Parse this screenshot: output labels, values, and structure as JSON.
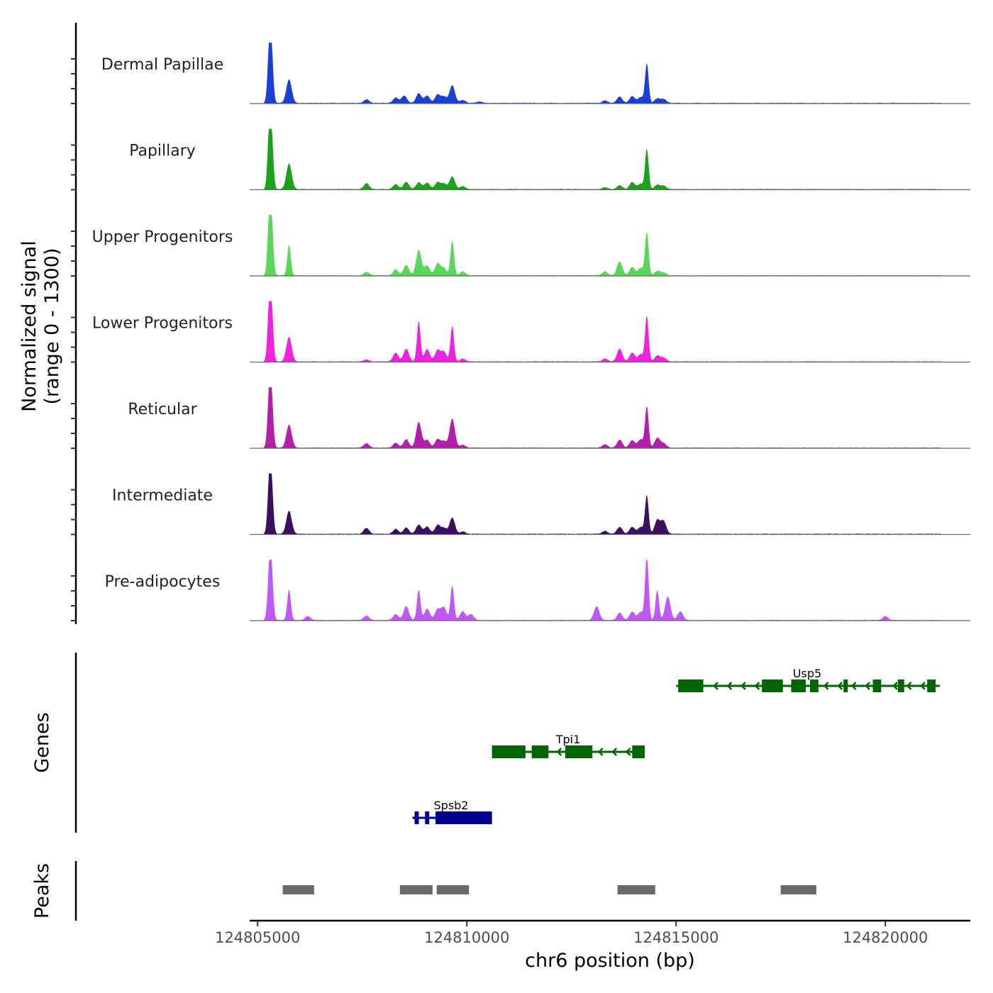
{
  "chart_data": {
    "type": "area",
    "title": "",
    "xlabel": "chr6 position (bp)",
    "ylabel_lines": [
      "Normalized signal",
      "(range 0 - 1300)"
    ],
    "y_range": [
      0,
      1300
    ],
    "x_range": [
      124804810,
      124822030
    ],
    "x_ticks": [
      124805000,
      124810000,
      124815000,
      124820000
    ],
    "x_tick_labels": [
      "124805000",
      "124810000",
      "124815000",
      "124820000"
    ],
    "tracks": [
      {
        "name": "Dermal Papillae",
        "color": "#1a3fd6",
        "peaks": [
          [
            124805100,
            124805600,
            0.0
          ],
          [
            124805150,
            0.55
          ],
          [
            124805280,
            1000
          ],
          [
            124805330,
            920
          ],
          [
            124805750,
            480
          ],
          [
            124807600,
            70
          ],
          [
            124808300,
            110
          ],
          [
            124808500,
            150
          ],
          [
            124808850,
            200
          ],
          [
            124809050,
            150
          ],
          [
            124809300,
            170
          ],
          [
            124809450,
            130
          ],
          [
            124809650,
            360
          ],
          [
            124809900,
            60
          ],
          [
            124810300,
            30
          ],
          [
            124813300,
            50
          ],
          [
            124813650,
            130
          ],
          [
            124813950,
            140
          ],
          [
            124814150,
            120
          ],
          [
            124814300,
            800
          ],
          [
            124814550,
            90
          ],
          [
            124814700,
            80
          ]
        ]
      },
      {
        "name": "Papillary",
        "color": "#1aa31a",
        "peaks": [
          [
            124805150,
            0.55
          ],
          [
            124805280,
            1080
          ],
          [
            124805330,
            980
          ],
          [
            124805750,
            520
          ],
          [
            124807600,
            120
          ],
          [
            124808300,
            100
          ],
          [
            124808550,
            150
          ],
          [
            124808850,
            140
          ],
          [
            124809050,
            130
          ],
          [
            124809300,
            140
          ],
          [
            124809450,
            110
          ],
          [
            124809650,
            260
          ],
          [
            124809900,
            60
          ],
          [
            124813300,
            40
          ],
          [
            124813650,
            80
          ],
          [
            124813950,
            140
          ],
          [
            124814150,
            110
          ],
          [
            124814300,
            820
          ],
          [
            124814550,
            90
          ],
          [
            124814700,
            70
          ]
        ]
      },
      {
        "name": "Upper Progenitors",
        "color": "#5ad65a",
        "peaks": [
          [
            124805150,
            0.55
          ],
          [
            124805280,
            1070
          ],
          [
            124805330,
            980
          ],
          [
            124805750,
            620
          ],
          [
            124807600,
            70
          ],
          [
            124808300,
            120
          ],
          [
            124808550,
            210
          ],
          [
            124808850,
            520
          ],
          [
            124809050,
            200
          ],
          [
            124809300,
            240
          ],
          [
            124809450,
            150
          ],
          [
            124809650,
            700
          ],
          [
            124809900,
            80
          ],
          [
            124813300,
            80
          ],
          [
            124813650,
            280
          ],
          [
            124813950,
            170
          ],
          [
            124814150,
            150
          ],
          [
            124814300,
            880
          ],
          [
            124814550,
            90
          ],
          [
            124814700,
            60
          ]
        ]
      },
      {
        "name": "Lower Progenitors",
        "color": "#ef22e0",
        "peaks": [
          [
            124805150,
            0.55
          ],
          [
            124805280,
            1050
          ],
          [
            124805330,
            960
          ],
          [
            124805750,
            500
          ],
          [
            124807600,
            40
          ],
          [
            124808300,
            180
          ],
          [
            124808550,
            260
          ],
          [
            124808850,
            820
          ],
          [
            124809050,
            250
          ],
          [
            124809300,
            230
          ],
          [
            124809450,
            200
          ],
          [
            124809650,
            720
          ],
          [
            124809900,
            60
          ],
          [
            124813300,
            60
          ],
          [
            124813650,
            260
          ],
          [
            124813950,
            180
          ],
          [
            124814150,
            150
          ],
          [
            124814300,
            920
          ],
          [
            124814550,
            120
          ],
          [
            124814700,
            80
          ]
        ]
      },
      {
        "name": "Reticular",
        "color": "#b31ea8",
        "peaks": [
          [
            124805150,
            0.55
          ],
          [
            124805280,
            1020
          ],
          [
            124805330,
            920
          ],
          [
            124805750,
            470
          ],
          [
            124807600,
            90
          ],
          [
            124808300,
            100
          ],
          [
            124808550,
            170
          ],
          [
            124808850,
            520
          ],
          [
            124809050,
            160
          ],
          [
            124809300,
            170
          ],
          [
            124809450,
            130
          ],
          [
            124809650,
            590
          ],
          [
            124809900,
            60
          ],
          [
            124813300,
            70
          ],
          [
            124813650,
            160
          ],
          [
            124813950,
            150
          ],
          [
            124814150,
            170
          ],
          [
            124814300,
            840
          ],
          [
            124814550,
            200
          ],
          [
            124814700,
            90
          ]
        ]
      },
      {
        "name": "Intermediate",
        "color": "#3b0e60",
        "peaks": [
          [
            124805150,
            0.55
          ],
          [
            124805280,
            980
          ],
          [
            124805330,
            900
          ],
          [
            124805750,
            470
          ],
          [
            124807600,
            120
          ],
          [
            124808300,
            100
          ],
          [
            124808550,
            130
          ],
          [
            124808850,
            190
          ],
          [
            124809050,
            150
          ],
          [
            124809300,
            180
          ],
          [
            124809450,
            120
          ],
          [
            124809650,
            330
          ],
          [
            124809900,
            50
          ],
          [
            124813300,
            60
          ],
          [
            124813650,
            140
          ],
          [
            124813950,
            140
          ],
          [
            124814150,
            140
          ],
          [
            124814300,
            780
          ],
          [
            124814550,
            280
          ],
          [
            124814700,
            260
          ]
        ]
      },
      {
        "name": "Pre-adipocytes",
        "color": "#c158f5",
        "peaks": [
          [
            124805150,
            0.55
          ],
          [
            124805280,
            900
          ],
          [
            124805330,
            860
          ],
          [
            124805750,
            620
          ],
          [
            124806200,
            80
          ],
          [
            124807600,
            90
          ],
          [
            124808300,
            120
          ],
          [
            124808550,
            280
          ],
          [
            124808850,
            620
          ],
          [
            124809050,
            230
          ],
          [
            124809300,
            220
          ],
          [
            124809450,
            260
          ],
          [
            124809650,
            700
          ],
          [
            124809900,
            180
          ],
          [
            124810100,
            120
          ],
          [
            124813100,
            280
          ],
          [
            124813650,
            150
          ],
          [
            124813950,
            170
          ],
          [
            124814150,
            160
          ],
          [
            124814300,
            1300
          ],
          [
            124814550,
            610
          ],
          [
            124814800,
            480
          ],
          [
            124815100,
            180
          ],
          [
            124820000,
            80
          ]
        ]
      }
    ],
    "genes": {
      "label": "Genes",
      "items": [
        {
          "name": "Spsb2",
          "strand": "-",
          "color": "#00008b",
          "start": 124808700,
          "end": 124810600,
          "exons": [
            [
              124808750,
              124808850
            ],
            [
              124809000,
              124809100
            ],
            [
              124809250,
              124810600
            ]
          ]
        },
        {
          "name": "Tpi1",
          "strand": "-",
          "color": "#006400",
          "start": 124810600,
          "end": 124814250,
          "exons": [
            [
              124810600,
              124811400
            ],
            [
              124811550,
              124811950
            ],
            [
              124812350,
              124813000
            ],
            [
              124813950,
              124814250
            ]
          ]
        },
        {
          "name": "Usp5",
          "strand": "-",
          "color": "#006400",
          "start": 124815000,
          "end": 124821300,
          "exons": [
            [
              124815050,
              124815650
            ],
            [
              124817050,
              124817550
            ],
            [
              124817750,
              124818100
            ],
            [
              124818200,
              124818400
            ],
            [
              124819000,
              124819100
            ],
            [
              124819700,
              124819900
            ],
            [
              124820300,
              124820450
            ],
            [
              124821000,
              124821200
            ]
          ]
        }
      ]
    },
    "peaks_track": {
      "label": "Peaks",
      "color": "#696969",
      "regions": [
        [
          124805600,
          124806350
        ],
        [
          124808400,
          124809180
        ],
        [
          124809280,
          124810050
        ],
        [
          124813600,
          124814500
        ],
        [
          124817500,
          124818350
        ]
      ]
    }
  }
}
